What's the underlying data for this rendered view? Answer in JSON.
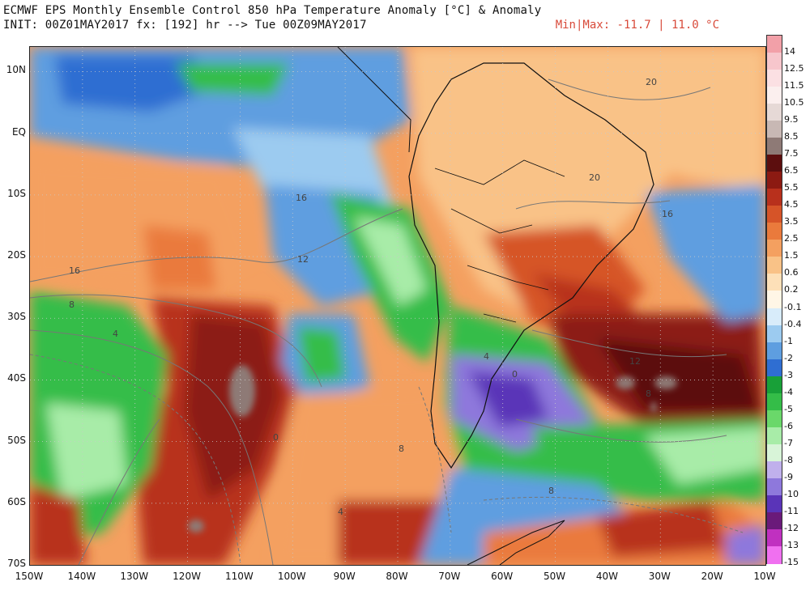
{
  "header": {
    "title": "ECMWF EPS Monthly Ensemble Control 850 hPa Temperature Anomaly [°C] & Anomaly",
    "init": "INIT: 00Z01MAY2017 fx: [192] hr --> Tue 00Z09MAY2017",
    "minmax": "Min|Max: -11.7 | 11.0 °C"
  },
  "map": {
    "lon_range": [
      -150,
      -10
    ],
    "lat_range": [
      -70,
      14
    ],
    "lat_labels": [
      "10N",
      "EQ",
      "10S",
      "20S",
      "30S",
      "40S",
      "50S",
      "60S",
      "70S"
    ],
    "lat_values": [
      10,
      0,
      -10,
      -20,
      -30,
      -40,
      -50,
      -60,
      -70
    ],
    "lon_labels": [
      "150W",
      "140W",
      "130W",
      "120W",
      "110W",
      "100W",
      "90W",
      "80W",
      "70W",
      "60W",
      "50W",
      "40W",
      "30W",
      "20W",
      "10W"
    ],
    "lon_values": [
      -150,
      -140,
      -130,
      -120,
      -110,
      -100,
      -90,
      -80,
      -70,
      -60,
      -50,
      -40,
      -30,
      -20,
      -10
    ],
    "contour_labels": [
      "20",
      "20",
      "16",
      "16",
      "16",
      "12",
      "12",
      "8",
      "8",
      "8",
      "8",
      "4",
      "4",
      "4",
      "0",
      "0"
    ]
  },
  "colorbar": {
    "labels": [
      "14",
      "12.5",
      "11.5",
      "10.5",
      "9.5",
      "8.5",
      "7.5",
      "6.5",
      "5.5",
      "4.5",
      "3.5",
      "2.5",
      "1.5",
      "0.6",
      "0.2",
      "-0.1",
      "-0.4",
      "-1",
      "-2",
      "-3",
      "-4",
      "-5",
      "-6",
      "-7",
      "-8",
      "-9",
      "-10",
      "-11",
      "-12",
      "-13",
      "-15"
    ],
    "colors": [
      "#f2a0a8",
      "#f7c6cc",
      "#fbe0e3",
      "#fbefee",
      "#e6d9d6",
      "#c8b8b4",
      "#8e7a76",
      "#5c0e0e",
      "#8c1a12",
      "#b8301c",
      "#d65428",
      "#ea7a3c",
      "#f4a060",
      "#f9c287",
      "#fde0b8",
      "#fff6e6",
      "#d8ecfa",
      "#9ccbf0",
      "#5e9ee0",
      "#2f6ed2",
      "#18a038",
      "#34bd48",
      "#6ad86a",
      "#a8eca8",
      "#d8f4d8",
      "#c0b0ec",
      "#8e78dc",
      "#5a34b8",
      "#6a1a7a",
      "#c030c0",
      "#f070f0"
    ]
  }
}
